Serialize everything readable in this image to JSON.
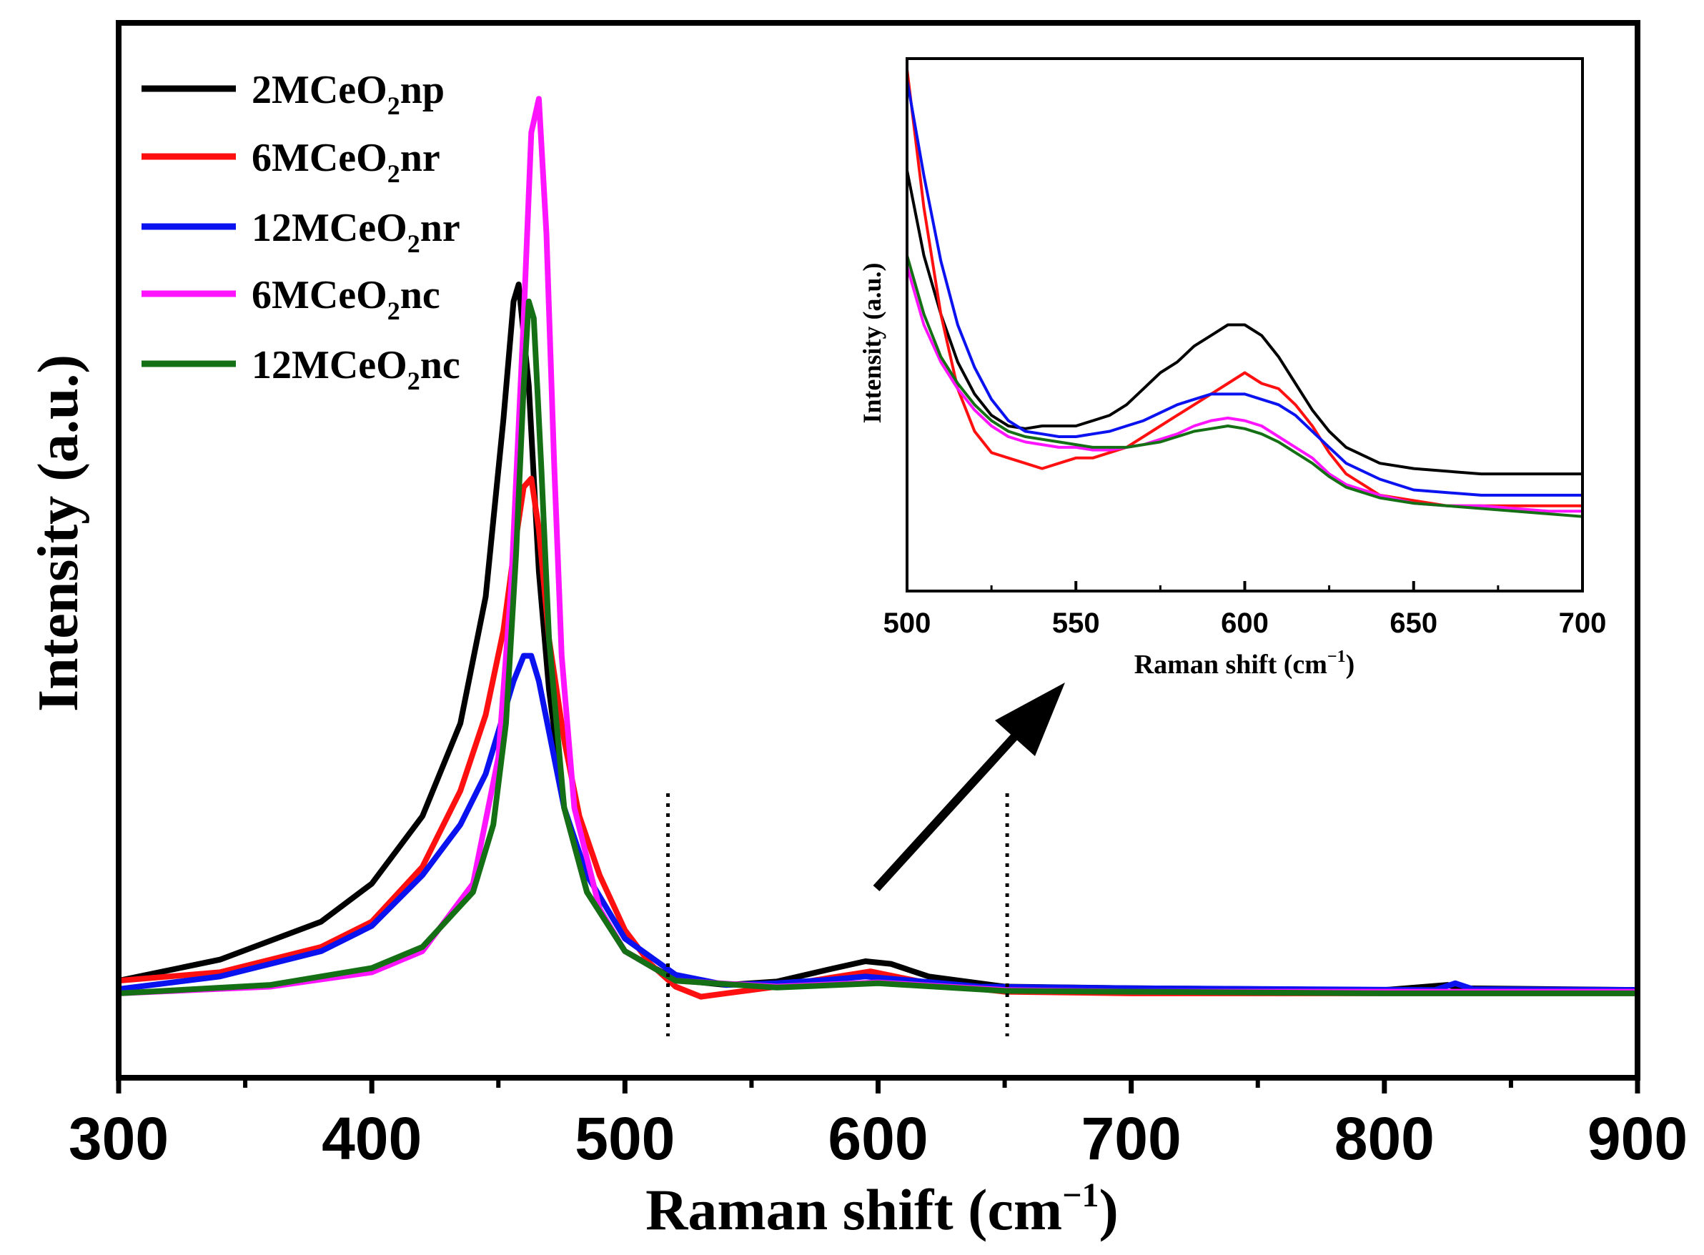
{
  "chart_data": [
    {
      "id": "main",
      "type": "line",
      "title": "",
      "xlabel_main": "Raman shift (cm",
      "xlabel_sup": "−1",
      "xlabel_tail": ")",
      "ylabel": "Intensity (a.u.)",
      "xlim": [
        300,
        900
      ],
      "ylim": [
        -0.1,
        1.15
      ],
      "xticks": [
        "300",
        "400",
        "500",
        "600",
        "700",
        "800",
        "900"
      ],
      "yticks_shown": false,
      "legend_placement": "top-left",
      "series": [
        {
          "name": "2MCeO2np",
          "label_pre": "2MCeO",
          "label_sub": "2",
          "label_post": "np",
          "color": "#000000",
          "x": [
            300,
            340,
            380,
            400,
            420,
            435,
            445,
            452,
            456,
            458,
            462,
            466,
            470,
            476,
            485,
            500,
            520,
            540,
            560,
            580,
            595,
            605,
            620,
            650,
            700,
            800,
            825,
            830,
            900
          ],
          "y": [
            0.015,
            0.04,
            0.085,
            0.13,
            0.21,
            0.32,
            0.47,
            0.68,
            0.82,
            0.84,
            0.72,
            0.5,
            0.36,
            0.22,
            0.12,
            0.05,
            0.016,
            0.01,
            0.014,
            0.028,
            0.038,
            0.035,
            0.02,
            0.008,
            0.006,
            0.004,
            0.01,
            0.006,
            0.004
          ]
        },
        {
          "name": "6MCeO2nr",
          "label_pre": "6MCeO",
          "label_sub": "2",
          "label_post": "nr",
          "color": "#ff1010",
          "x": [
            300,
            340,
            380,
            400,
            420,
            435,
            445,
            452,
            456,
            460,
            463,
            466,
            470,
            476,
            482,
            490,
            500,
            510,
            520,
            530,
            560,
            580,
            597,
            620,
            650,
            700,
            800,
            900
          ],
          "y": [
            0.015,
            0.025,
            0.055,
            0.085,
            0.15,
            0.24,
            0.33,
            0.43,
            0.52,
            0.6,
            0.61,
            0.55,
            0.42,
            0.3,
            0.21,
            0.14,
            0.075,
            0.035,
            0.008,
            -0.004,
            0.008,
            0.018,
            0.026,
            0.012,
            0.002,
            0.0,
            0.0,
            0.0
          ]
        },
        {
          "name": "12MCeO2nr",
          "label_pre": "12MCeO",
          "label_sub": "2",
          "label_post": "nr",
          "color": "#0a12f0",
          "x": [
            300,
            340,
            380,
            400,
            420,
            435,
            445,
            452,
            456,
            460,
            463,
            466,
            470,
            476,
            485,
            500,
            520,
            540,
            560,
            580,
            595,
            610,
            640,
            700,
            820,
            828,
            835,
            900
          ],
          "y": [
            0.005,
            0.02,
            0.05,
            0.08,
            0.14,
            0.2,
            0.26,
            0.33,
            0.37,
            0.4,
            0.4,
            0.37,
            0.31,
            0.22,
            0.14,
            0.065,
            0.022,
            0.01,
            0.012,
            0.016,
            0.02,
            0.016,
            0.008,
            0.006,
            0.004,
            0.012,
            0.005,
            0.004
          ]
        },
        {
          "name": "6MCeO2nc",
          "label_pre": "6MCeO",
          "label_sub": "2",
          "label_post": "nc",
          "color": "#ff14ff",
          "x": [
            300,
            360,
            400,
            420,
            440,
            450,
            455,
            460,
            463,
            466,
            469,
            472,
            475,
            480,
            490,
            500,
            520,
            560,
            600,
            650,
            700,
            800,
            900
          ],
          "y": [
            0.0,
            0.008,
            0.025,
            0.05,
            0.13,
            0.28,
            0.48,
            0.8,
            1.02,
            1.06,
            0.9,
            0.63,
            0.4,
            0.22,
            0.1,
            0.05,
            0.015,
            0.008,
            0.013,
            0.004,
            0.002,
            0.002,
            0.002
          ]
        },
        {
          "name": "12MCeO2nc",
          "label_pre": "12MCeO",
          "label_sub": "2",
          "label_post": "nc",
          "color": "#157015",
          "x": [
            300,
            360,
            400,
            420,
            440,
            448,
            453,
            457,
            460,
            462,
            464,
            467,
            470,
            476,
            485,
            500,
            520,
            560,
            600,
            650,
            700,
            800,
            900
          ],
          "y": [
            0.0,
            0.01,
            0.03,
            0.055,
            0.12,
            0.2,
            0.32,
            0.52,
            0.72,
            0.82,
            0.8,
            0.62,
            0.42,
            0.22,
            0.12,
            0.05,
            0.015,
            0.007,
            0.012,
            0.003,
            0.002,
            0.0,
            0.0
          ]
        }
      ],
      "annotations": {
        "dotted_lines_x": [
          517,
          651
        ],
        "arrow": "zoom arrow pointing to inset"
      }
    },
    {
      "id": "inset",
      "type": "line",
      "title": "",
      "xlabel_main": "Raman shift (cm",
      "xlabel_sup": "−1",
      "xlabel_tail": ")",
      "ylabel": "Intensity (a.u.)",
      "xlim": [
        500,
        700
      ],
      "ylim": [
        0,
        1
      ],
      "xticks": [
        "500",
        "550",
        "600",
        "650",
        "700"
      ],
      "series": [
        {
          "name": "2MCeO2np",
          "color": "#000000",
          "x": [
            500,
            505,
            510,
            515,
            520,
            525,
            530,
            535,
            540,
            545,
            550,
            555,
            560,
            565,
            570,
            575,
            580,
            585,
            590,
            595,
            600,
            605,
            610,
            615,
            620,
            625,
            630,
            640,
            650,
            660,
            670,
            680,
            690,
            700
          ],
          "y": [
            0.79,
            0.63,
            0.52,
            0.43,
            0.37,
            0.33,
            0.31,
            0.305,
            0.31,
            0.31,
            0.31,
            0.32,
            0.33,
            0.35,
            0.38,
            0.41,
            0.43,
            0.46,
            0.48,
            0.5,
            0.5,
            0.48,
            0.44,
            0.39,
            0.34,
            0.3,
            0.27,
            0.24,
            0.23,
            0.225,
            0.22,
            0.22,
            0.22,
            0.22
          ]
        },
        {
          "name": "6MCeO2nr",
          "color": "#ff1010",
          "x": [
            500,
            505,
            510,
            515,
            520,
            525,
            530,
            535,
            540,
            545,
            550,
            555,
            560,
            565,
            570,
            575,
            580,
            585,
            590,
            595,
            600,
            605,
            610,
            615,
            620,
            625,
            630,
            640,
            650,
            660,
            670,
            680,
            690,
            700
          ],
          "y": [
            0.98,
            0.72,
            0.52,
            0.38,
            0.3,
            0.26,
            0.25,
            0.24,
            0.23,
            0.24,
            0.25,
            0.25,
            0.26,
            0.27,
            0.29,
            0.31,
            0.33,
            0.35,
            0.37,
            0.39,
            0.41,
            0.39,
            0.38,
            0.35,
            0.31,
            0.26,
            0.22,
            0.18,
            0.17,
            0.16,
            0.16,
            0.16,
            0.16,
            0.16
          ]
        },
        {
          "name": "12MCeO2nr",
          "color": "#0a12f0",
          "x": [
            500,
            505,
            510,
            515,
            520,
            525,
            530,
            535,
            540,
            545,
            550,
            555,
            560,
            565,
            570,
            575,
            580,
            585,
            590,
            595,
            600,
            605,
            610,
            615,
            620,
            625,
            630,
            640,
            650,
            660,
            670,
            680,
            690,
            700
          ],
          "y": [
            0.96,
            0.78,
            0.62,
            0.5,
            0.42,
            0.36,
            0.32,
            0.3,
            0.295,
            0.29,
            0.29,
            0.295,
            0.3,
            0.31,
            0.32,
            0.335,
            0.35,
            0.36,
            0.37,
            0.37,
            0.37,
            0.36,
            0.35,
            0.33,
            0.3,
            0.27,
            0.24,
            0.21,
            0.19,
            0.185,
            0.18,
            0.18,
            0.18,
            0.18
          ]
        },
        {
          "name": "6MCeO2nc",
          "color": "#ff14ff",
          "x": [
            500,
            505,
            510,
            515,
            520,
            525,
            530,
            535,
            540,
            545,
            550,
            555,
            560,
            565,
            570,
            575,
            580,
            585,
            590,
            595,
            600,
            605,
            610,
            615,
            620,
            625,
            630,
            640,
            650,
            660,
            670,
            680,
            690,
            700
          ],
          "y": [
            0.61,
            0.5,
            0.43,
            0.38,
            0.34,
            0.31,
            0.29,
            0.28,
            0.275,
            0.27,
            0.27,
            0.265,
            0.265,
            0.27,
            0.275,
            0.285,
            0.295,
            0.31,
            0.32,
            0.325,
            0.32,
            0.31,
            0.29,
            0.27,
            0.25,
            0.22,
            0.2,
            0.18,
            0.165,
            0.16,
            0.16,
            0.155,
            0.15,
            0.15
          ]
        },
        {
          "name": "12MCeO2nc",
          "color": "#157015",
          "x": [
            500,
            505,
            510,
            515,
            520,
            525,
            530,
            535,
            540,
            545,
            550,
            555,
            560,
            565,
            570,
            575,
            580,
            585,
            590,
            595,
            600,
            605,
            610,
            615,
            620,
            625,
            630,
            640,
            650,
            660,
            670,
            680,
            690,
            700
          ],
          "y": [
            0.63,
            0.52,
            0.44,
            0.39,
            0.35,
            0.32,
            0.3,
            0.29,
            0.285,
            0.28,
            0.275,
            0.27,
            0.27,
            0.27,
            0.275,
            0.28,
            0.29,
            0.3,
            0.305,
            0.31,
            0.305,
            0.295,
            0.28,
            0.26,
            0.24,
            0.215,
            0.195,
            0.175,
            0.165,
            0.16,
            0.155,
            0.15,
            0.145,
            0.14
          ]
        }
      ]
    }
  ]
}
